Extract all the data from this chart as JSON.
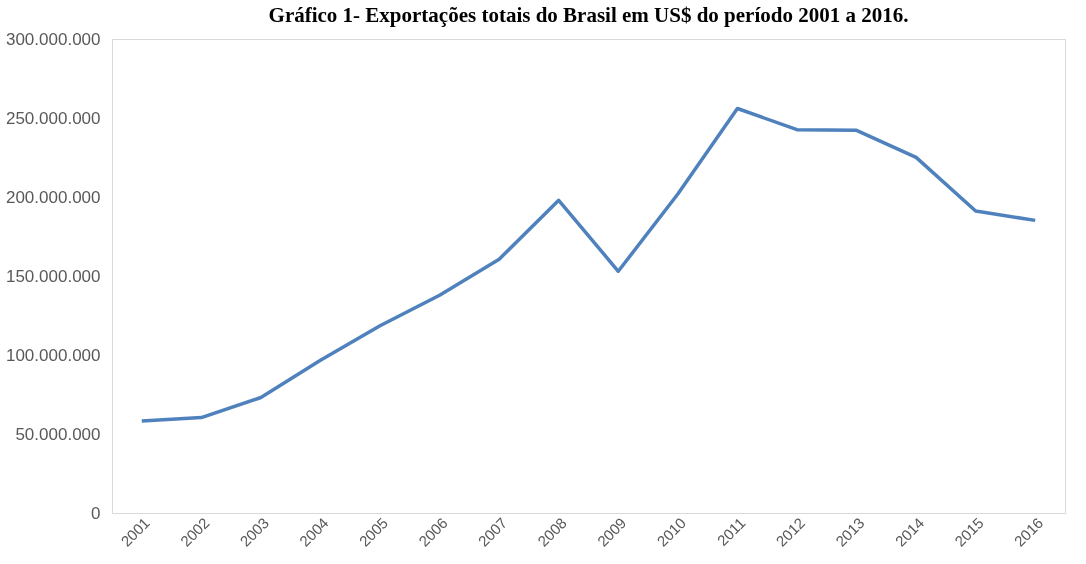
{
  "chart_data": {
    "type": "line",
    "title": "Gráfico 1- Exportações totais do Brasil em US$ do período 2001 a 2016.",
    "categories": [
      "2001",
      "2002",
      "2003",
      "2004",
      "2005",
      "2006",
      "2007",
      "2008",
      "2009",
      "2010",
      "2011",
      "2012",
      "2013",
      "2014",
      "2015",
      "2016"
    ],
    "series": [
      {
        "color": "#4f81bd",
        "values": [
          58200000,
          60400000,
          73100000,
          96700000,
          118500000,
          137800000,
          160600000,
          197900000,
          153000000,
          201900000,
          256000000,
          242600000,
          242200000,
          225100000,
          191100000,
          185200000
        ]
      }
    ],
    "ylim": [
      0,
      300000000
    ],
    "yticks": [
      0,
      {
        "value": 50000000,
        "label": "50.000.000"
      },
      {
        "value": 100000000,
        "label": "100.000.000"
      },
      {
        "value": 150000000,
        "label": "150.000.000"
      },
      {
        "value": 200000000,
        "label": "200.000.000"
      },
      {
        "value": 250000000,
        "label": "250.000.000"
      },
      {
        "value": 300000000,
        "label": "300.000.000"
      }
    ],
    "marker": "none",
    "line_style": "solid",
    "legend": false
  }
}
